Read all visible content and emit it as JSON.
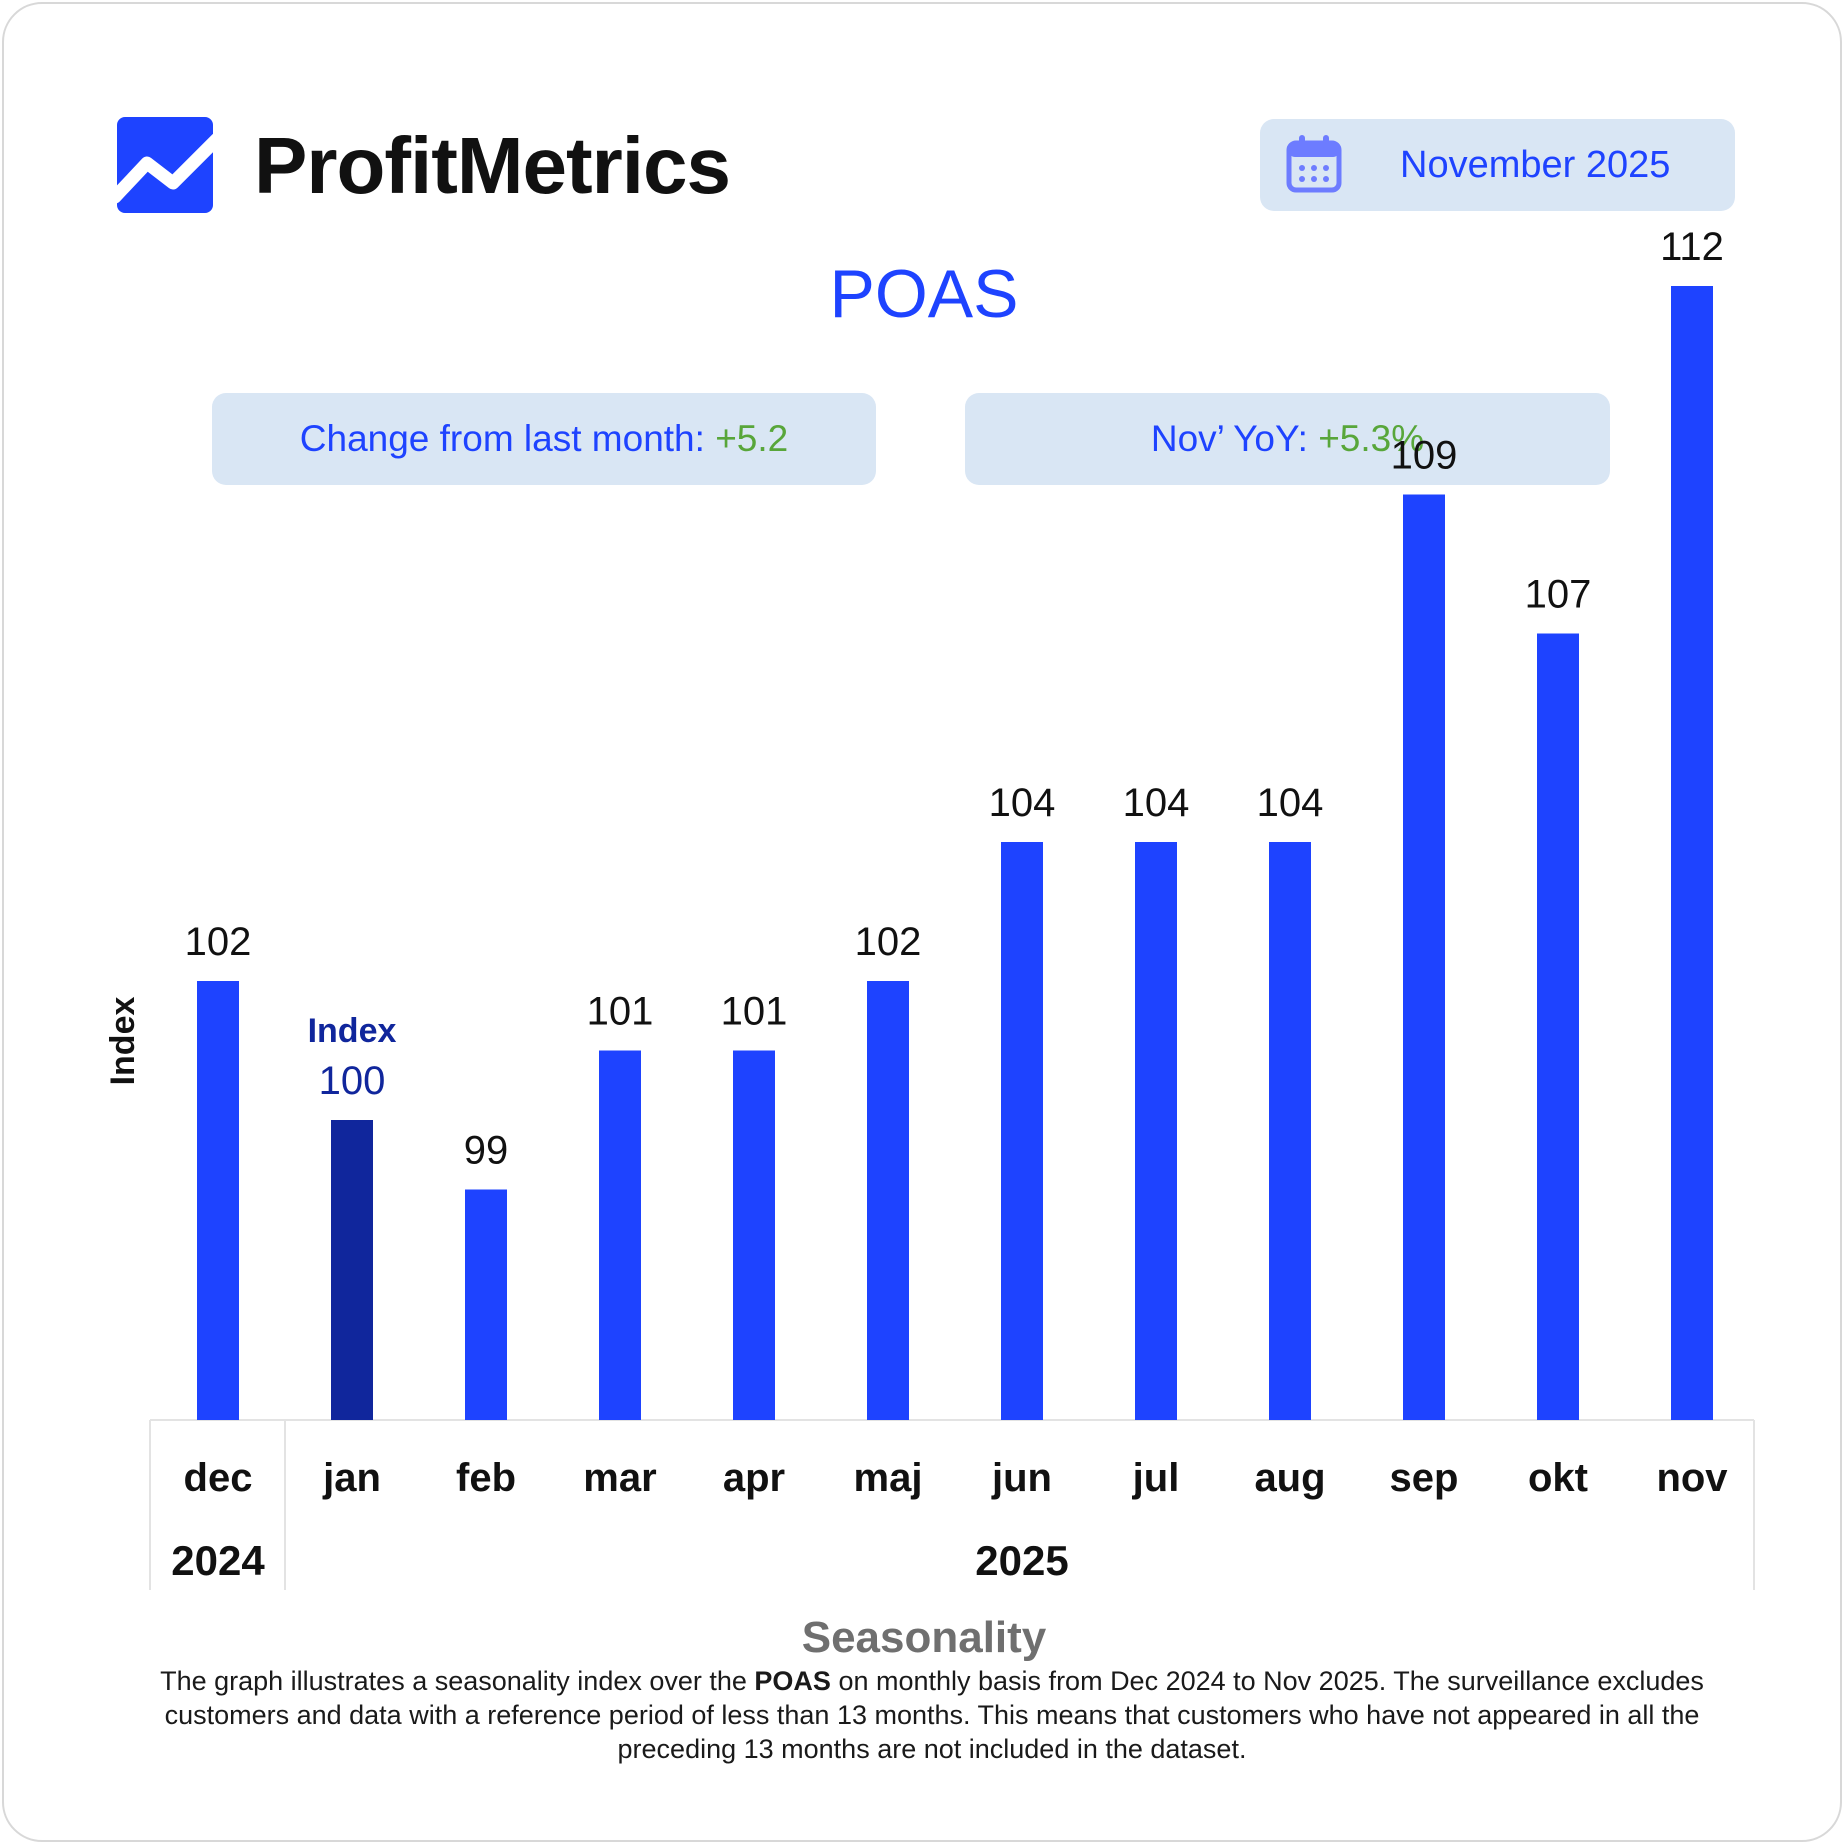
{
  "brand": {
    "name": "ProfitMetrics",
    "accent": "#1e43ff"
  },
  "header": {
    "calendar_icon": "calendar-icon",
    "date_label": "November 2025"
  },
  "title": "POAS",
  "metrics": {
    "change_label": "Change from last month: ",
    "change_value": "+5.2",
    "yoy_label": "Nov’ YoY: ",
    "yoy_value": "+5.3%",
    "positive_color": "#58a63a"
  },
  "chart_data": {
    "type": "bar",
    "ylabel": "Index",
    "categories": [
      "dec",
      "jan",
      "feb",
      "mar",
      "apr",
      "maj",
      "jun",
      "jul",
      "aug",
      "sep",
      "okt",
      "nov"
    ],
    "values": [
      102,
      100,
      99,
      101,
      101,
      102,
      104,
      104,
      104,
      109,
      107,
      112
    ],
    "value_labels": [
      "102",
      "100",
      "99",
      "101",
      "101",
      "102",
      "104",
      "104",
      "104",
      "109",
      "107",
      "112"
    ],
    "year_groups": [
      {
        "label": "2024",
        "start": 0,
        "end": 0
      },
      {
        "label": "2025",
        "start": 1,
        "end": 11
      }
    ],
    "reference": {
      "index": 1,
      "label": "Index",
      "color": "#10269c"
    },
    "bar_color": "#1e43ff",
    "grid": false,
    "legend": "none"
  },
  "caption": {
    "title": "Seasonality",
    "text_before": "The graph illustrates a seasonality index over the ",
    "text_bold": "POAS",
    "text_after": " on monthly basis from Dec 2024 to Nov 2025. The surveillance excludes customers and data with a reference period of less than 13 months. This means that customers who have not appeared in all the preceding 13 months are not included in the dataset."
  }
}
